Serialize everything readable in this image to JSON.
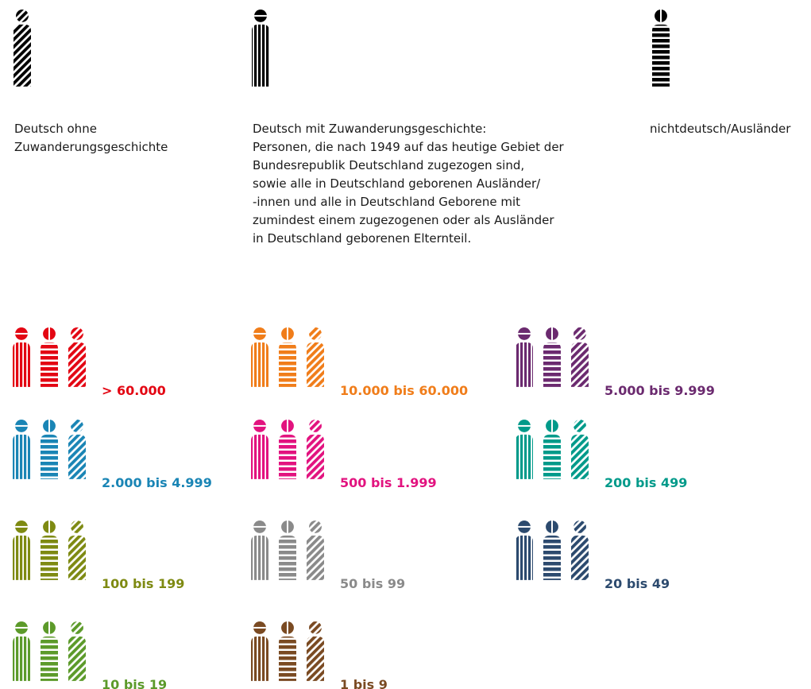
{
  "types": [
    {
      "pattern": "diagonal",
      "lines": [
        "Deutsch ohne",
        "Zuwanderungsgeschichte"
      ]
    },
    {
      "pattern": "vertical",
      "lines": [
        "Deutsch mit Zuwanderungsgeschichte:",
        "Personen, die nach 1949 auf das heutige Gebiet der",
        "Bundesrepublik Deutschland zugezogen sind,",
        "sowie alle in Deutschland geborenen Ausländer/",
        "-innen und alle in Deutschland Geborene mit",
        "zumindest einem zugezogenen oder als Ausländer",
        "in Deutschland geborenen Elternteil."
      ]
    },
    {
      "pattern": "horizontal",
      "lines": [
        "nichtdeutsch/Ausländer"
      ]
    }
  ],
  "classes": [
    {
      "label": "> 60.000",
      "color": "#e30613"
    },
    {
      "label": "10.000 bis 60.000",
      "color": "#f07d1a"
    },
    {
      "label": "5.000 bis 9.999",
      "color": "#6b2a6f"
    },
    {
      "label": "2.000 bis 4.999",
      "color": "#1a85b5"
    },
    {
      "label": "500 bis 1.999",
      "color": "#e2137f"
    },
    {
      "label": "200 bis 499",
      "color": "#009a8a"
    },
    {
      "label": "100 bis 199",
      "color": "#7e8a12"
    },
    {
      "label": "50 bis 99",
      "color": "#8a8a8a"
    },
    {
      "label": "20 bis 49",
      "color": "#2c4a6e"
    },
    {
      "label": "10 bis 19",
      "color": "#5c9a2a"
    },
    {
      "label": "1 bis 9",
      "color": "#7a4a22"
    }
  ]
}
